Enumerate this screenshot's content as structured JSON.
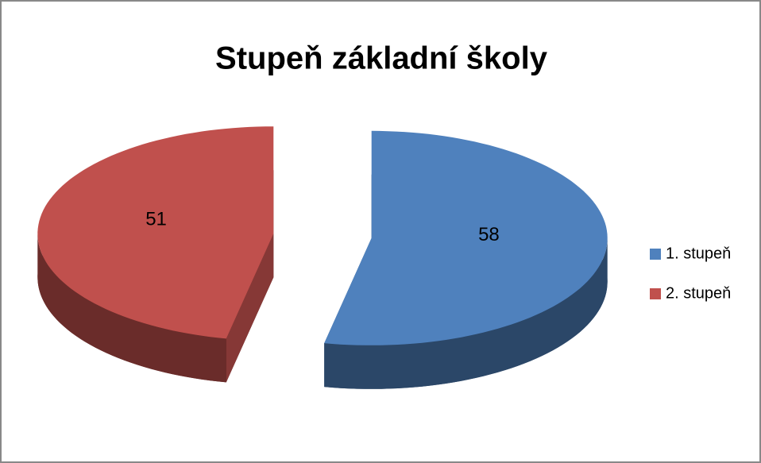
{
  "chart_data": {
    "type": "pie",
    "title": "Stupeň základní školy",
    "categories": [
      "1. stupeň",
      "2. stupeň"
    ],
    "values": [
      58,
      51
    ],
    "colors": [
      "#4f81bd",
      "#c0504d"
    ],
    "legend": "right"
  }
}
